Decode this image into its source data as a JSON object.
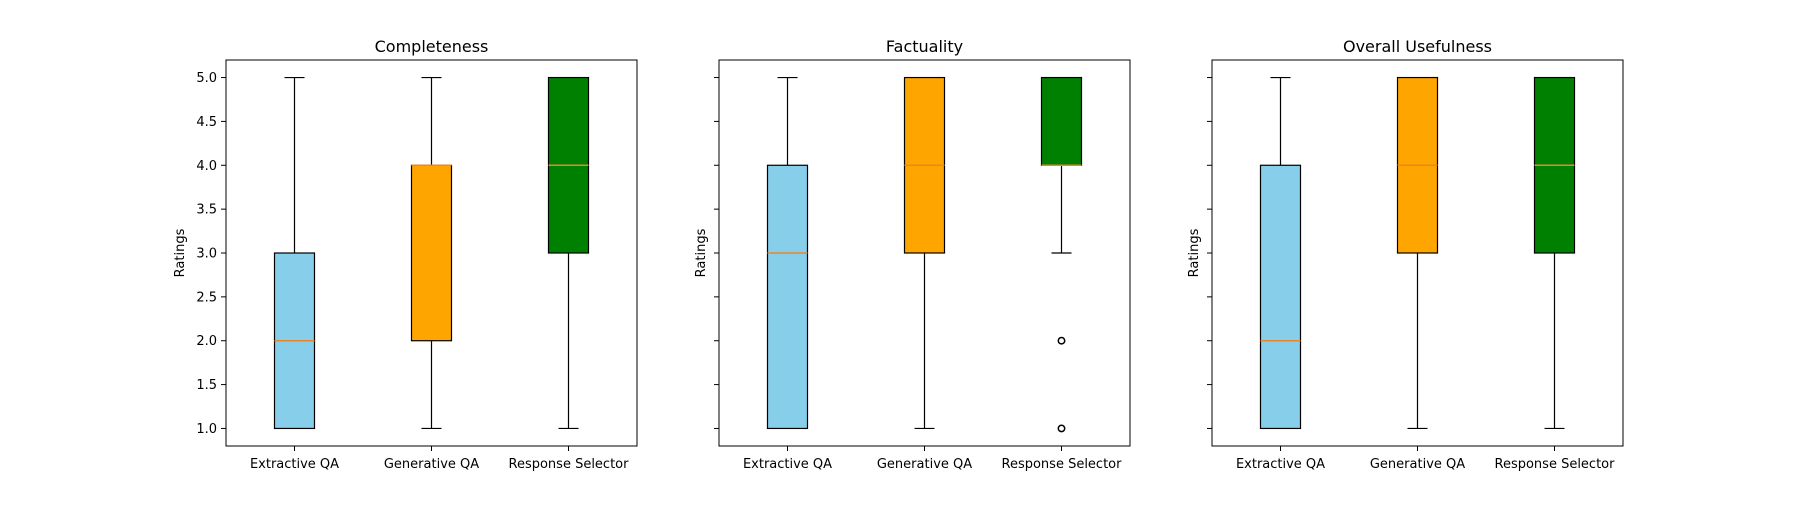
{
  "chart_data": [
    {
      "type": "box",
      "title": "Completeness",
      "xlabel": "",
      "ylabel": "Ratings",
      "ylim": [
        0.8,
        5.2
      ],
      "yticks": [
        "1.0",
        "1.5",
        "2.0",
        "2.5",
        "3.0",
        "3.5",
        "4.0",
        "4.5",
        "5.0"
      ],
      "show_ytick_labels": true,
      "categories": [
        "Extractive QA",
        "Generative QA",
        "Response Selector"
      ],
      "boxes": [
        {
          "min": 1.0,
          "q1": 1.0,
          "median": 2.0,
          "q3": 3.0,
          "max": 5.0,
          "outliers": []
        },
        {
          "min": 1.0,
          "q1": 2.0,
          "median": 4.0,
          "q3": 4.0,
          "max": 5.0,
          "outliers": []
        },
        {
          "min": 1.0,
          "q1": 3.0,
          "median": 4.0,
          "q3": 5.0,
          "max": 5.0,
          "outliers": []
        }
      ]
    },
    {
      "type": "box",
      "title": "Factuality",
      "xlabel": "",
      "ylabel": "Ratings",
      "ylim": [
        0.8,
        5.2
      ],
      "yticks": [
        "1.0",
        "1.5",
        "2.0",
        "2.5",
        "3.0",
        "3.5",
        "4.0",
        "4.5",
        "5.0"
      ],
      "show_ytick_labels": false,
      "categories": [
        "Extractive QA",
        "Generative QA",
        "Response Selector"
      ],
      "boxes": [
        {
          "min": 1.0,
          "q1": 1.0,
          "median": 3.0,
          "q3": 4.0,
          "max": 5.0,
          "outliers": []
        },
        {
          "min": 1.0,
          "q1": 3.0,
          "median": 4.0,
          "q3": 5.0,
          "max": 5.0,
          "outliers": []
        },
        {
          "min": 3.0,
          "q1": 4.0,
          "median": 4.0,
          "q3": 5.0,
          "max": 5.0,
          "outliers": [
            2.0,
            1.0
          ]
        }
      ]
    },
    {
      "type": "box",
      "title": "Overall Usefulness",
      "xlabel": "",
      "ylabel": "Ratings",
      "ylim": [
        0.8,
        5.2
      ],
      "yticks": [
        "1.0",
        "1.5",
        "2.0",
        "2.5",
        "3.0",
        "3.5",
        "4.0",
        "4.5",
        "5.0"
      ],
      "show_ytick_labels": false,
      "categories": [
        "Extractive QA",
        "Generative QA",
        "Response Selector"
      ],
      "boxes": [
        {
          "min": 1.0,
          "q1": 1.0,
          "median": 2.0,
          "q3": 4.0,
          "max": 5.0,
          "outliers": []
        },
        {
          "min": 1.0,
          "q1": 3.0,
          "median": 4.0,
          "q3": 5.0,
          "max": 5.0,
          "outliers": []
        },
        {
          "min": 1.0,
          "q1": 3.0,
          "median": 4.0,
          "q3": 5.0,
          "max": 5.0,
          "outliers": []
        }
      ]
    }
  ],
  "colors": {
    "box_fills": [
      "#87ceeb",
      "#ffa500",
      "#008000"
    ],
    "median_line": "#e8862c",
    "axes": "#000000",
    "background": "#ffffff"
  }
}
